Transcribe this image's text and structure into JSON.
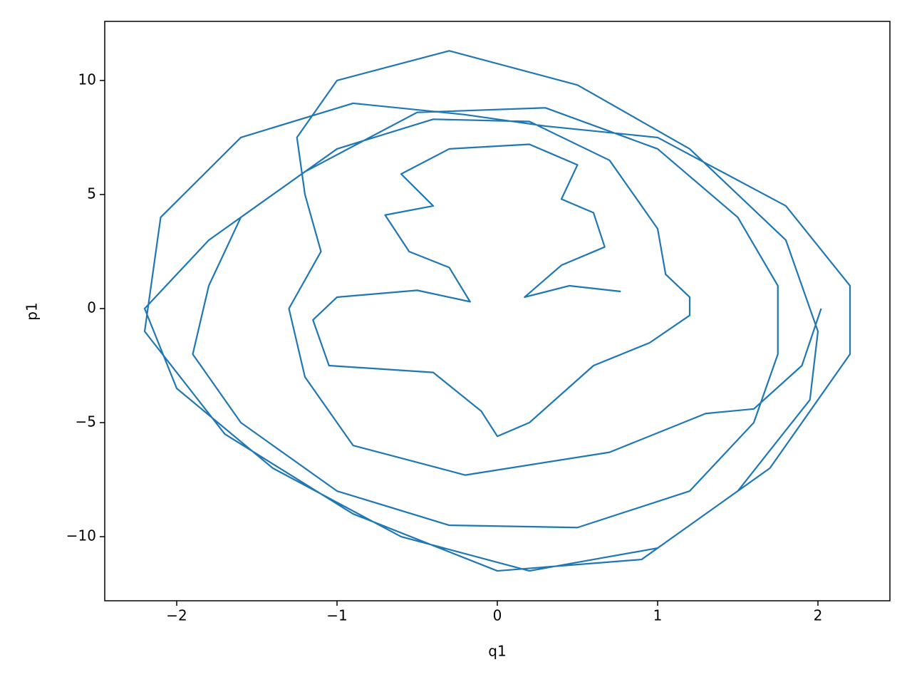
{
  "chart_data": {
    "type": "line",
    "x_label": "q1",
    "y_label": "p1",
    "xlim": [
      -2.449,
      2.449
    ],
    "ylim": [
      -12.81,
      12.59
    ],
    "xticks": [
      {
        "value": -2,
        "label": "−2"
      },
      {
        "value": -1,
        "label": "−1"
      },
      0,
      1,
      2
    ],
    "yticks": [
      {
        "value": -10,
        "label": "−10"
      },
      {
        "value": -5,
        "label": "−5"
      },
      0,
      5,
      10
    ],
    "series": [
      {
        "color": "#1f77b4",
        "x": [
          0.77,
          0.45,
          0.17,
          0.4,
          0.67,
          0.6,
          0.4,
          0.5,
          0.2,
          -0.3,
          -0.6,
          -0.4,
          -0.7,
          -0.55,
          -0.3,
          -0.17,
          -0.5,
          -1.0,
          -1.15,
          -1.05,
          -0.4,
          -0.1,
          0.0,
          0.2,
          0.6,
          0.95,
          1.2,
          1.2,
          1.05,
          1.0,
          0.7,
          0.2,
          -0.4,
          -1.0,
          -1.6,
          -1.8,
          -1.9,
          -1.6,
          -1.0,
          -0.3,
          0.5,
          1.2,
          1.6,
          1.75,
          1.75,
          1.5,
          1.0,
          0.3,
          -0.5,
          -1.2,
          -1.8,
          -2.2,
          -2.0,
          -1.4,
          -0.6,
          0.2,
          1.0,
          1.7,
          2.2,
          2.2,
          1.8,
          1.0,
          0.3,
          -0.2,
          -0.9,
          -1.6,
          -2.1,
          -2.2,
          -1.7,
          -0.9,
          0.0,
          0.9,
          1.5,
          1.95,
          2.0,
          1.8,
          1.2,
          0.5,
          -0.3,
          -1.0,
          -1.25,
          -1.2,
          -1.1,
          -1.3,
          -1.2,
          -0.9,
          -0.2,
          0.7,
          1.3,
          1.6,
          1.9,
          2.02
        ],
        "values": [
          0.75,
          1.0,
          0.5,
          1.9,
          2.7,
          4.2,
          4.8,
          6.3,
          7.2,
          7.0,
          5.9,
          4.5,
          4.1,
          2.5,
          1.8,
          0.3,
          0.8,
          0.5,
          -0.5,
          -2.5,
          -2.8,
          -4.5,
          -5.6,
          -5.0,
          -2.5,
          -1.5,
          -0.3,
          0.5,
          1.5,
          3.5,
          6.5,
          8.2,
          8.3,
          7.0,
          4.0,
          1.0,
          -2.0,
          -5.0,
          -8.0,
          -9.5,
          -9.6,
          -8.0,
          -5.0,
          -2.0,
          1.0,
          4.0,
          7.0,
          8.8,
          8.6,
          6.0,
          3.0,
          0.0,
          -3.5,
          -7.0,
          -10.0,
          -11.5,
          -10.5,
          -7.0,
          -2.0,
          1.0,
          4.5,
          7.5,
          8.0,
          8.5,
          9.0,
          7.5,
          4.0,
          -1.0,
          -5.5,
          -9.0,
          -11.5,
          -11.0,
          -8.0,
          -4.0,
          -1.0,
          3.0,
          7.0,
          9.8,
          11.3,
          10.0,
          7.5,
          5.0,
          2.5,
          0.0,
          -3.0,
          -6.0,
          -7.3,
          -6.3,
          -4.6,
          -4.4,
          -2.5,
          0.0
        ]
      }
    ]
  }
}
